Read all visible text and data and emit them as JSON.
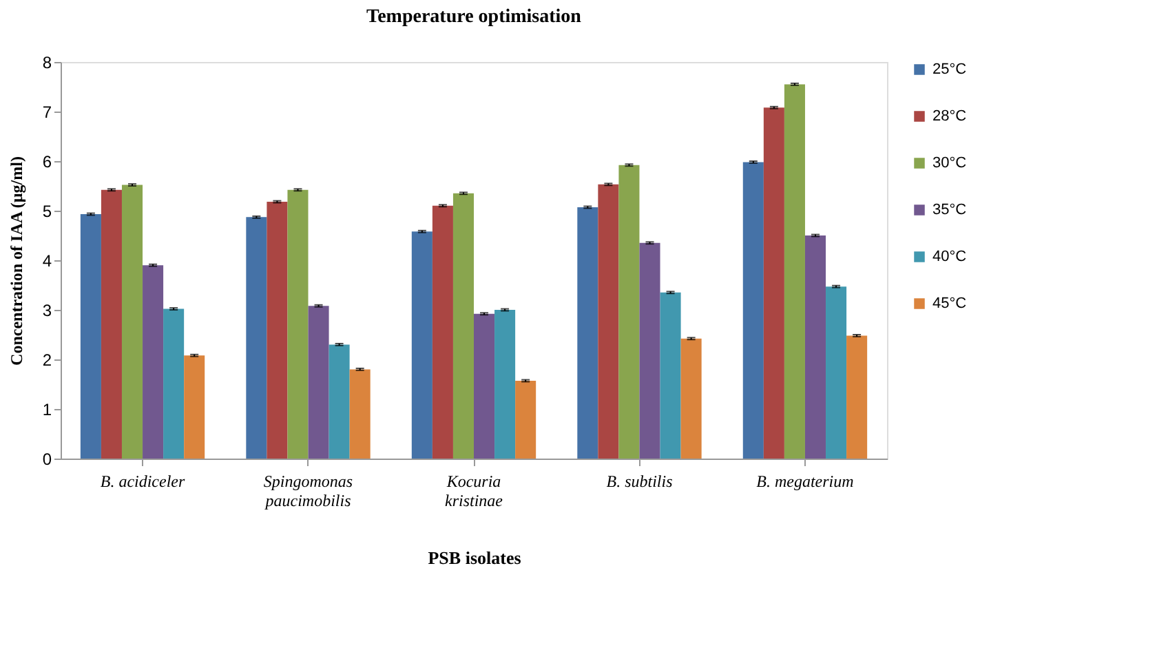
{
  "chart_data": {
    "type": "bar",
    "title": "Temperature  optimisation",
    "xlabel": "PSB isolates",
    "ylabel": "Concentration of IAA (µg/ml)",
    "categories": [
      "B. acidiceler",
      "Spingomonas paucimobilis",
      "Kocuria kristinae",
      "B. subtilis",
      "B. megaterium"
    ],
    "series": [
      {
        "name": "25°C",
        "color": "#4572a7",
        "values": [
          4.93,
          4.87,
          4.58,
          5.07,
          5.98
        ],
        "errors": [
          0.02,
          0.02,
          0.02,
          0.02,
          0.02
        ]
      },
      {
        "name": "28°C",
        "color": "#aa4643",
        "values": [
          5.42,
          5.18,
          5.1,
          5.53,
          7.08
        ],
        "errors": [
          0.02,
          0.02,
          0.02,
          0.02,
          0.02
        ]
      },
      {
        "name": "30°C",
        "color": "#89a54e",
        "values": [
          5.52,
          5.42,
          5.35,
          5.92,
          7.55
        ],
        "errors": [
          0.02,
          0.02,
          0.02,
          0.02,
          0.02
        ]
      },
      {
        "name": "35°C",
        "color": "#71588f",
        "values": [
          3.9,
          3.08,
          2.92,
          4.35,
          4.5
        ],
        "errors": [
          0.02,
          0.02,
          0.02,
          0.02,
          0.02
        ]
      },
      {
        "name": "40°C",
        "color": "#4198af",
        "values": [
          3.02,
          2.3,
          3.0,
          3.35,
          3.47
        ],
        "errors": [
          0.02,
          0.02,
          0.02,
          0.02,
          0.02
        ]
      },
      {
        "name": "45°C",
        "color": "#db843d",
        "values": [
          2.08,
          1.8,
          1.57,
          2.42,
          2.48
        ],
        "errors": [
          0.02,
          0.02,
          0.02,
          0.02,
          0.02
        ]
      }
    ],
    "ylim": [
      0,
      8
    ],
    "yticks": [
      0,
      1,
      2,
      3,
      4,
      5,
      6,
      7,
      8
    ],
    "grid": false,
    "legend": "right"
  }
}
